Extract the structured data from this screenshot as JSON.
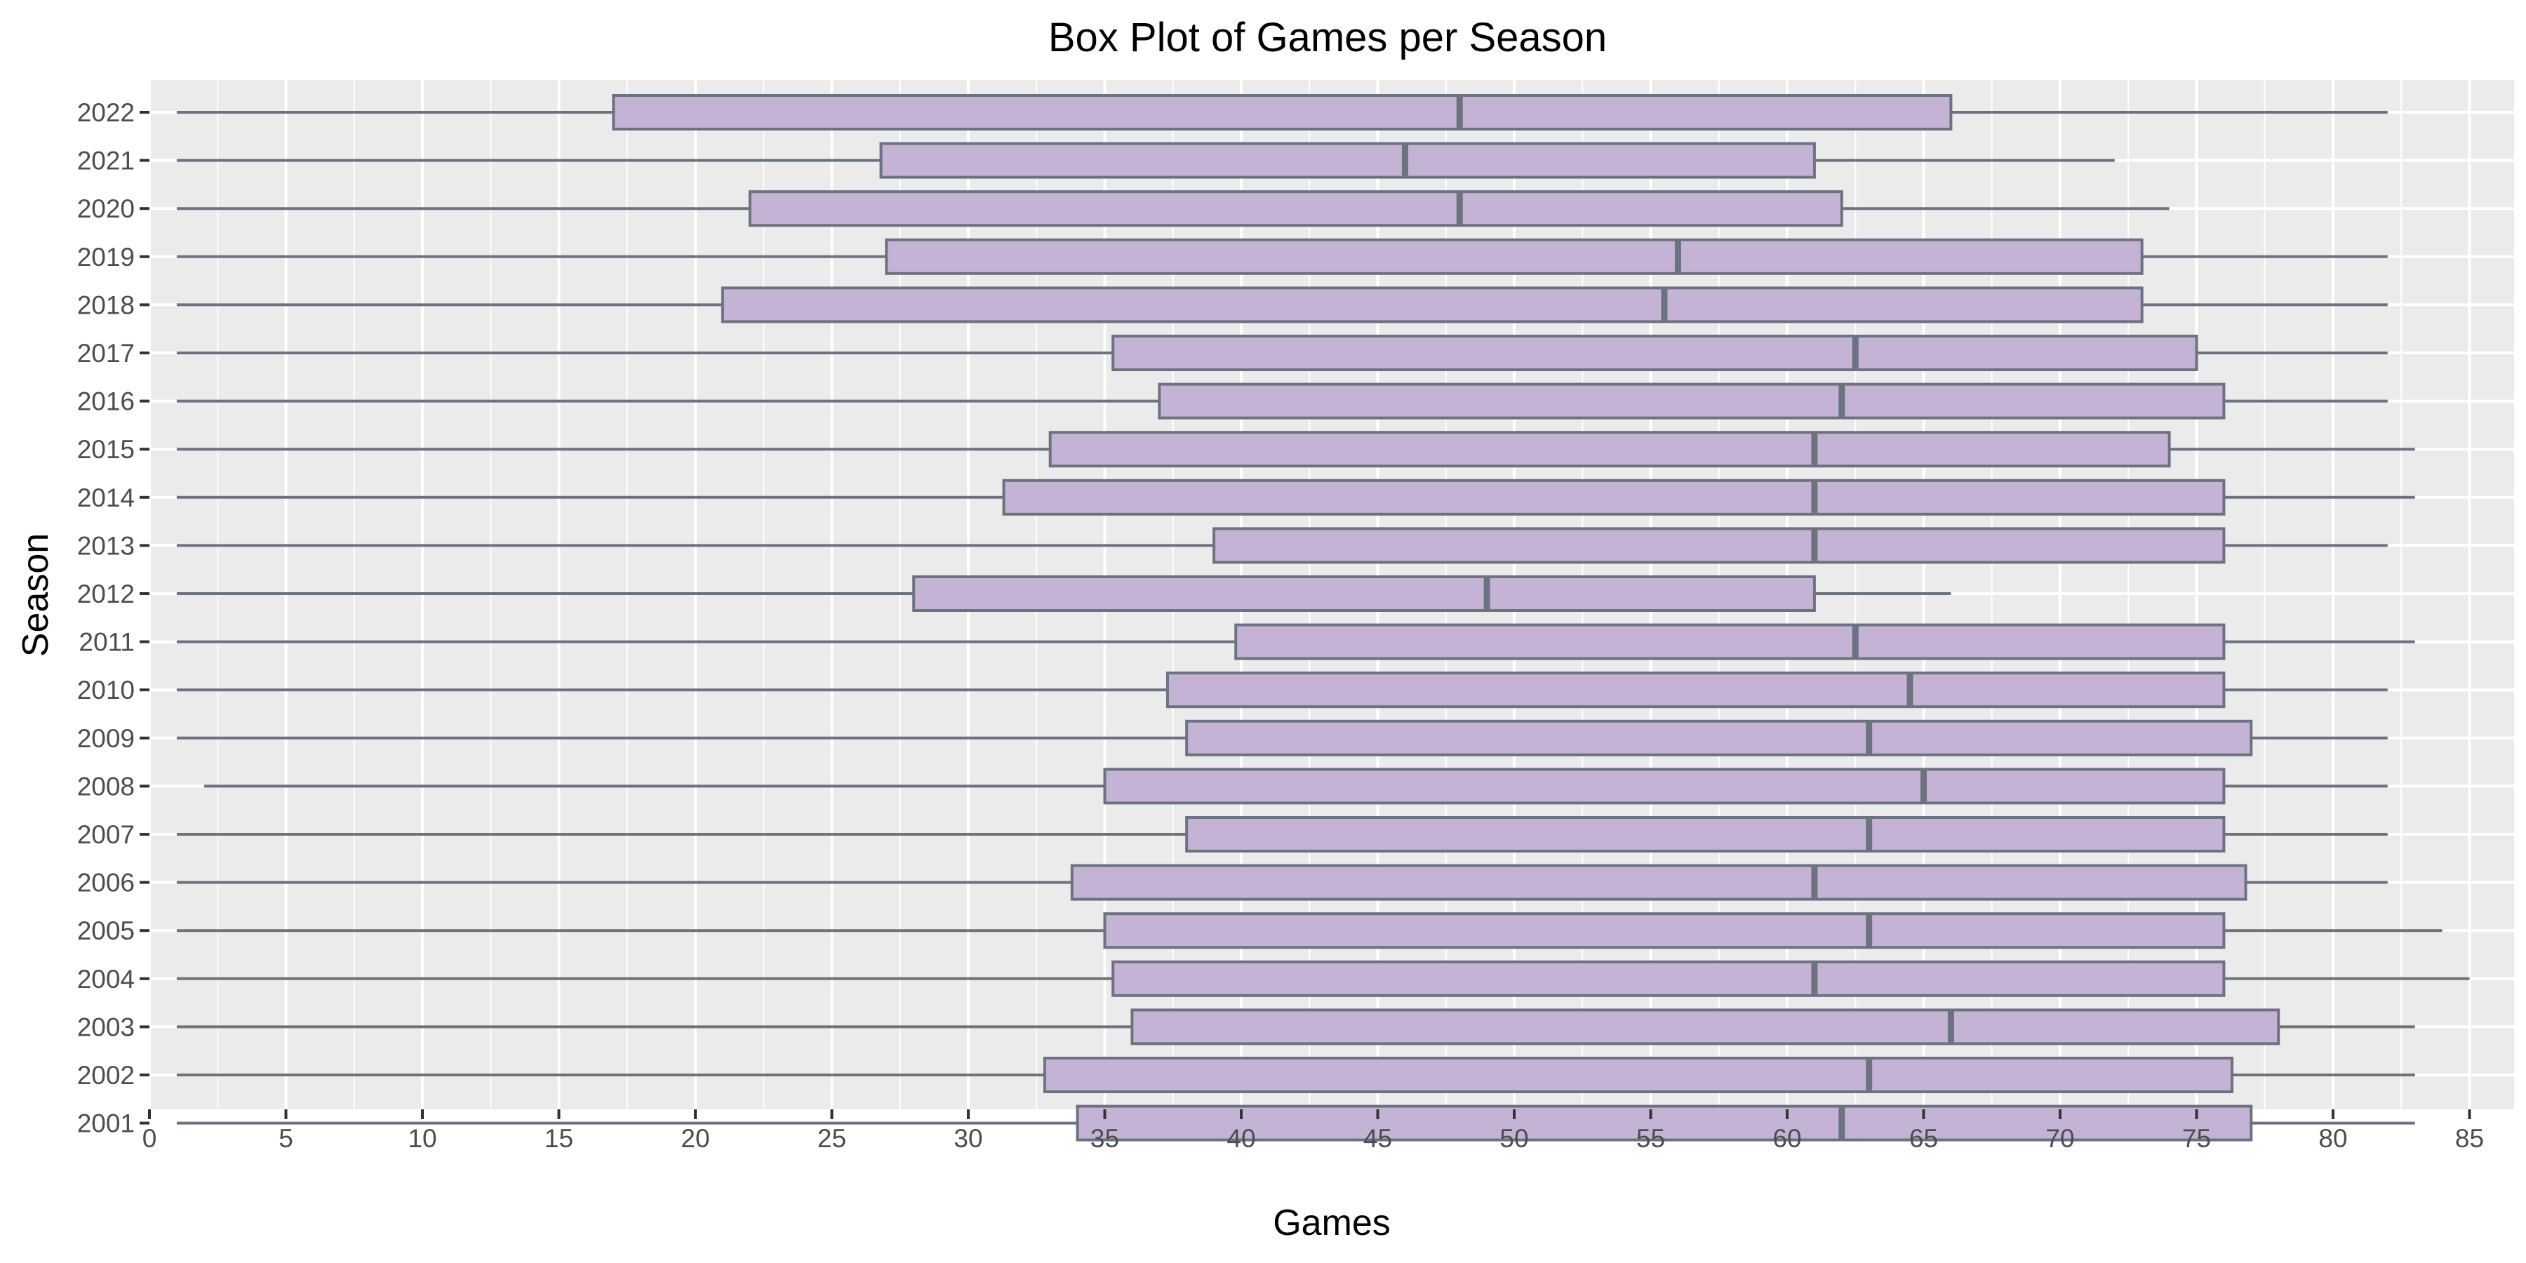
{
  "chart_data": {
    "type": "box",
    "orientation": "horizontal",
    "title": "Box Plot of Games per Season",
    "xlabel": "Games",
    "ylabel": "Season",
    "xlim": [
      0,
      85
    ],
    "x_ticks": [
      0,
      5,
      10,
      15,
      20,
      25,
      30,
      35,
      40,
      45,
      50,
      55,
      60,
      65,
      70,
      75,
      80,
      85
    ],
    "grid": true,
    "colors": {
      "panel_background": "#ebebeb",
      "grid": "#ffffff",
      "box_fill": "#c5b3d6",
      "box_stroke": "#6b7280",
      "tick_text": "#4d4d4d"
    },
    "categories": [
      "2022",
      "2021",
      "2020",
      "2019",
      "2018",
      "2017",
      "2016",
      "2015",
      "2014",
      "2013",
      "2012",
      "2011",
      "2010",
      "2009",
      "2008",
      "2007",
      "2006",
      "2005",
      "2004",
      "2003",
      "2002",
      "2001"
    ],
    "boxes": [
      {
        "season": "2022",
        "min": 1,
        "q1": 17,
        "median": 48,
        "q3": 66,
        "max": 82
      },
      {
        "season": "2021",
        "min": 1,
        "q1": 26.8,
        "median": 46,
        "q3": 61,
        "max": 72
      },
      {
        "season": "2020",
        "min": 1,
        "q1": 22,
        "median": 48,
        "q3": 62,
        "max": 74
      },
      {
        "season": "2019",
        "min": 1,
        "q1": 27,
        "median": 56,
        "q3": 73,
        "max": 82
      },
      {
        "season": "2018",
        "min": 1,
        "q1": 21,
        "median": 55.5,
        "q3": 73,
        "max": 82
      },
      {
        "season": "2017",
        "min": 1,
        "q1": 35.3,
        "median": 62.5,
        "q3": 75,
        "max": 82
      },
      {
        "season": "2016",
        "min": 1,
        "q1": 37,
        "median": 62,
        "q3": 76,
        "max": 82
      },
      {
        "season": "2015",
        "min": 1,
        "q1": 33,
        "median": 61,
        "q3": 74,
        "max": 83
      },
      {
        "season": "2014",
        "min": 1,
        "q1": 31.3,
        "median": 61,
        "q3": 76,
        "max": 83
      },
      {
        "season": "2013",
        "min": 1,
        "q1": 39,
        "median": 61,
        "q3": 76,
        "max": 82
      },
      {
        "season": "2012",
        "min": 1,
        "q1": 28,
        "median": 49,
        "q3": 61,
        "max": 66
      },
      {
        "season": "2011",
        "min": 1,
        "q1": 39.8,
        "median": 62.5,
        "q3": 76,
        "max": 83
      },
      {
        "season": "2010",
        "min": 1,
        "q1": 37.3,
        "median": 64.5,
        "q3": 76,
        "max": 82
      },
      {
        "season": "2009",
        "min": 1,
        "q1": 38,
        "median": 63,
        "q3": 77,
        "max": 82
      },
      {
        "season": "2008",
        "min": 2,
        "q1": 35,
        "median": 65,
        "q3": 76,
        "max": 82
      },
      {
        "season": "2007",
        "min": 1,
        "q1": 38,
        "median": 63,
        "q3": 76,
        "max": 82
      },
      {
        "season": "2006",
        "min": 1,
        "q1": 33.8,
        "median": 61,
        "q3": 76.8,
        "max": 82
      },
      {
        "season": "2005",
        "min": 1,
        "q1": 35,
        "median": 63,
        "q3": 76,
        "max": 84
      },
      {
        "season": "2004",
        "min": 1,
        "q1": 35.3,
        "median": 61,
        "q3": 76,
        "max": 85
      },
      {
        "season": "2003",
        "min": 1,
        "q1": 36,
        "median": 66,
        "q3": 78,
        "max": 83
      },
      {
        "season": "2002",
        "min": 1,
        "q1": 32.8,
        "median": 63,
        "q3": 76.3,
        "max": 83
      },
      {
        "season": "2001",
        "min": 1,
        "q1": 34,
        "median": 62,
        "q3": 77,
        "max": 83
      }
    ]
  }
}
